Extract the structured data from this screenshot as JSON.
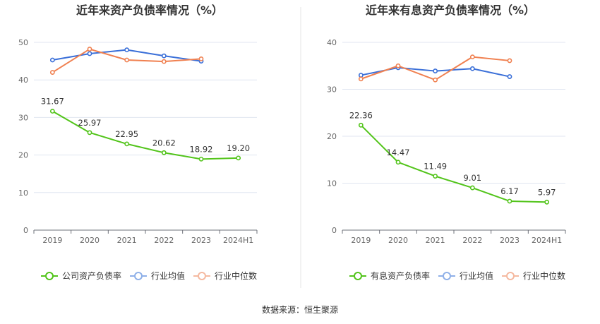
{
  "charts": [
    {
      "title": "近年来资产负债率情况（%）",
      "type": "line",
      "categories": [
        "2019",
        "2020",
        "2021",
        "2022",
        "2023",
        "2024H1"
      ],
      "ylim": [
        0,
        50
      ],
      "yticks": [
        0,
        10,
        20,
        30,
        40,
        50
      ],
      "series": [
        {
          "name": "公司资产负债率",
          "color": "#52c41a",
          "values": [
            31.67,
            25.97,
            22.95,
            20.62,
            18.92,
            19.2
          ],
          "labels": [
            "31.67",
            "25.97",
            "22.95",
            "20.62",
            "18.92",
            "19.20"
          ],
          "show_labels": true
        },
        {
          "name": "行业均值",
          "color": "#3a6fd8",
          "values": [
            45.3,
            47.0,
            48.0,
            46.4,
            45.0,
            null
          ],
          "show_labels": false
        },
        {
          "name": "行业中位数",
          "color": "#f08050",
          "values": [
            42.0,
            48.2,
            45.3,
            44.9,
            45.6,
            null
          ],
          "show_labels": false
        }
      ],
      "legend_colors": [
        "#52c41a",
        "#8fb0e8",
        "#f5b9a0"
      ]
    },
    {
      "title": "近年来有息资产负债率情况（%）",
      "type": "line",
      "categories": [
        "2019",
        "2020",
        "2021",
        "2022",
        "2023",
        "2024H1"
      ],
      "ylim": [
        0,
        40
      ],
      "yticks": [
        0,
        10,
        20,
        30,
        40
      ],
      "series": [
        {
          "name": "有息资产负债率",
          "color": "#52c41a",
          "values": [
            22.36,
            14.47,
            11.49,
            9.01,
            6.17,
            5.97
          ],
          "labels": [
            "22.36",
            "14.47",
            "11.49",
            "9.01",
            "6.17",
            "5.97"
          ],
          "show_labels": true
        },
        {
          "name": "行业均值",
          "color": "#3a6fd8",
          "values": [
            33.0,
            34.6,
            33.9,
            34.4,
            32.7,
            null
          ],
          "show_labels": false
        },
        {
          "name": "行业中位数",
          "color": "#f08050",
          "values": [
            32.2,
            35.0,
            32.0,
            36.9,
            36.1,
            null
          ],
          "show_labels": false
        }
      ],
      "legend_colors": [
        "#52c41a",
        "#8fb0e8",
        "#f5b9a0"
      ]
    }
  ],
  "source": "数据来源：恒生聚源",
  "chart_data": [
    {
      "type": "line",
      "title": "近年来资产负债率情况（%）",
      "categories": [
        "2019",
        "2020",
        "2021",
        "2022",
        "2023",
        "2024H1"
      ],
      "ylim": [
        0,
        50
      ],
      "series": [
        {
          "name": "公司资产负债率",
          "values": [
            31.67,
            25.97,
            22.95,
            20.62,
            18.92,
            19.2
          ]
        },
        {
          "name": "行业均值",
          "values": [
            45.3,
            47.0,
            48.0,
            46.4,
            45.0,
            null
          ]
        },
        {
          "name": "行业中位数",
          "values": [
            42.0,
            48.2,
            45.3,
            44.9,
            45.6,
            null
          ]
        }
      ],
      "legend_placement": "bottom"
    },
    {
      "type": "line",
      "title": "近年来有息资产负债率情况（%）",
      "categories": [
        "2019",
        "2020",
        "2021",
        "2022",
        "2023",
        "2024H1"
      ],
      "ylim": [
        0,
        40
      ],
      "series": [
        {
          "name": "有息资产负债率",
          "values": [
            22.36,
            14.47,
            11.49,
            9.01,
            6.17,
            5.97
          ]
        },
        {
          "name": "行业均值",
          "values": [
            33.0,
            34.6,
            33.9,
            34.4,
            32.7,
            null
          ]
        },
        {
          "name": "行业中位数",
          "values": [
            32.2,
            35.0,
            32.0,
            36.9,
            36.1,
            null
          ]
        }
      ],
      "legend_placement": "bottom"
    }
  ]
}
